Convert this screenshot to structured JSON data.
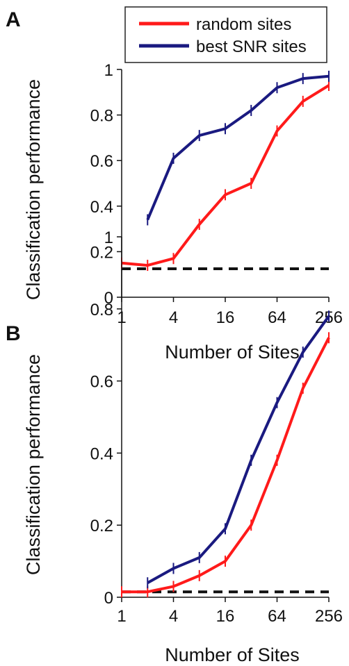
{
  "legend": {
    "items": [
      {
        "label": "random sites",
        "color": "#ff1a1a"
      },
      {
        "label": "best SNR sites",
        "color": "#1a1a80"
      }
    ]
  },
  "chart_data": [
    {
      "panel_label": "A",
      "type": "line",
      "xlabel": "Number of Sites",
      "ylabel": "Classification performance",
      "x_scale": "log2",
      "xlim": [
        1,
        256
      ],
      "ylim": [
        0,
        1
      ],
      "xticks": [
        1,
        4,
        16,
        64,
        256
      ],
      "xtick_labels": [
        "1",
        "4",
        "16",
        "64",
        "256"
      ],
      "yticks": [
        0,
        0.2,
        0.4,
        0.6,
        0.8,
        1
      ],
      "ytick_labels": [
        "0",
        "0.2",
        "0.4",
        "0.6",
        "0.8",
        "1"
      ],
      "chance_level": 0.125,
      "series": [
        {
          "name": "random sites",
          "color": "#ff1a1a",
          "x": [
            1,
            2,
            4,
            8,
            16,
            32,
            64,
            128,
            256
          ],
          "y": [
            0.15,
            0.14,
            0.17,
            0.32,
            0.45,
            0.5,
            0.73,
            0.86,
            0.93
          ]
        },
        {
          "name": "best SNR sites",
          "color": "#1a1a80",
          "x": [
            2,
            4,
            8,
            16,
            32,
            64,
            128,
            256
          ],
          "y": [
            0.34,
            0.61,
            0.71,
            0.74,
            0.82,
            0.92,
            0.96,
            0.97
          ]
        }
      ]
    },
    {
      "panel_label": "B",
      "type": "line",
      "xlabel": "Number of Sites",
      "ylabel": "Classification performance",
      "x_scale": "log2",
      "xlim": [
        1,
        256
      ],
      "ylim": [
        0,
        1
      ],
      "xticks": [
        1,
        4,
        16,
        64,
        256
      ],
      "xtick_labels": [
        "1",
        "4",
        "16",
        "64",
        "256"
      ],
      "yticks": [
        0,
        0.2,
        0.4,
        0.6,
        0.8,
        1
      ],
      "ytick_labels": [
        "0",
        "0.2",
        "0.4",
        "0.6",
        "0.8",
        "1"
      ],
      "chance_level": 0.015,
      "series": [
        {
          "name": "random sites",
          "color": "#ff1a1a",
          "x": [
            1,
            2,
            4,
            8,
            16,
            32,
            64,
            128,
            256
          ],
          "y": [
            0.015,
            0.015,
            0.03,
            0.06,
            0.1,
            0.2,
            0.38,
            0.58,
            0.72
          ]
        },
        {
          "name": "best SNR sites",
          "color": "#1a1a80",
          "x": [
            2,
            4,
            8,
            16,
            32,
            64,
            128,
            256
          ],
          "y": [
            0.04,
            0.08,
            0.11,
            0.19,
            0.38,
            0.54,
            0.68,
            0.78
          ]
        }
      ]
    }
  ]
}
